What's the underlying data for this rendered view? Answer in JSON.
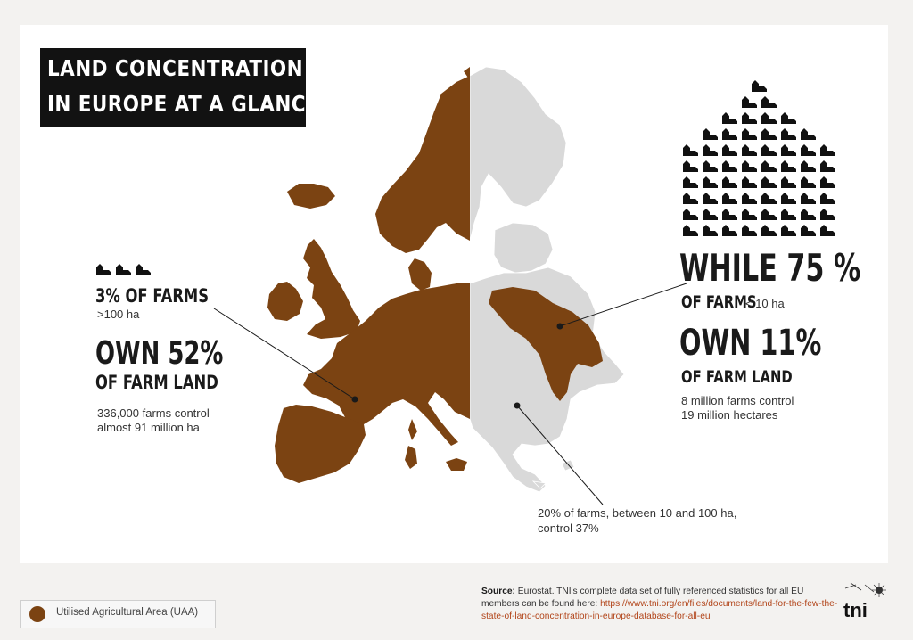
{
  "title": {
    "line1": "LAND CONCENTRATION",
    "line2": "IN EUROPE AT A GLANCE"
  },
  "left_stat": {
    "headline": "3% OF FARMS",
    "size_note": ">100 ha",
    "own_line": "OWN 52%",
    "own_sub": "OF FARM LAND",
    "detail_line1": "336,000 farms control",
    "detail_line2": "almost 91 million ha"
  },
  "right_stat": {
    "headline": "WHILE 75 %",
    "farms_label": "OF FARMS",
    "size_note": "< 10 ha",
    "own_line": "OWN 11%",
    "own_sub": "OF FARM LAND",
    "detail_line1": "8 million farms control",
    "detail_line2": "19 million hectares"
  },
  "middle_stat": {
    "line1": "20% of farms, between 10 and 100 ha,",
    "line2": "control 37%"
  },
  "legend": {
    "label": "Utilised Agricultural Area (UAA)"
  },
  "source": {
    "head": "Source:",
    "text": " Eurostat. TNI's complete data set of fully referenced statistics for all EU members can be found here: ",
    "link": "https://www.tni.org/en/files/documents/land-for-the-few-the-state-of-land-concentration-in-europe-database-for-all-eu"
  },
  "logo": {
    "text": "tni"
  },
  "colors": {
    "uaa_brown": "#7b4312",
    "map_gray": "#d9d9d9",
    "title_bg": "#121212",
    "link": "#b2451a"
  },
  "icons": {
    "farm": "farm-building-icon",
    "legend": "uaa-dot-icon"
  }
}
